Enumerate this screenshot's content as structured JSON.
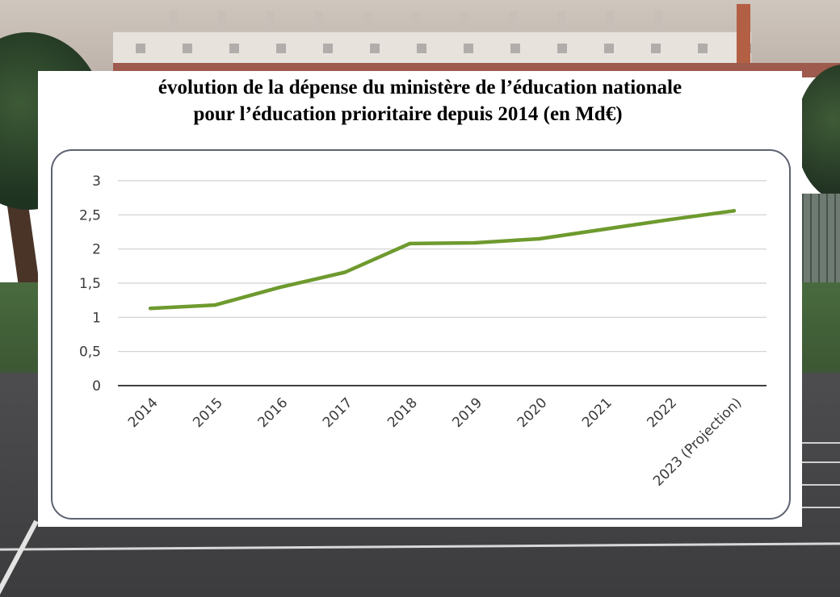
{
  "header": {
    "title_line1": "évolution de la dépense du ministère de l’éducation nationale",
    "title_line2": "pour l’éducation prioritaire depuis 2014 (en Md€)"
  },
  "chart_data": {
    "type": "line",
    "title": "évolution de la dépense du ministère de l’éducation nationale pour l’éducation prioritaire depuis 2014 (en Md€)",
    "xlabel": "",
    "ylabel": "",
    "categories": [
      "2014",
      "2015",
      "2016",
      "2017",
      "2018",
      "2019",
      "2020",
      "2021",
      "2022",
      "2023 (Projection)"
    ],
    "series": [
      {
        "values": [
          1.13,
          1.18,
          1.44,
          1.66,
          2.08,
          2.09,
          2.15,
          2.29,
          2.43,
          2.56
        ],
        "color": "#6e9a2e"
      }
    ],
    "yticks": [
      "0",
      "0,5",
      "1",
      "1,5",
      "2",
      "2,5",
      "3"
    ],
    "ylim": [
      0,
      3
    ],
    "grid": true,
    "legend": "none",
    "colors": {
      "line": "#6e9a2e",
      "grid": "#cfcfcf",
      "axis": "#3f3f3f",
      "frame": "#5d6270"
    }
  }
}
